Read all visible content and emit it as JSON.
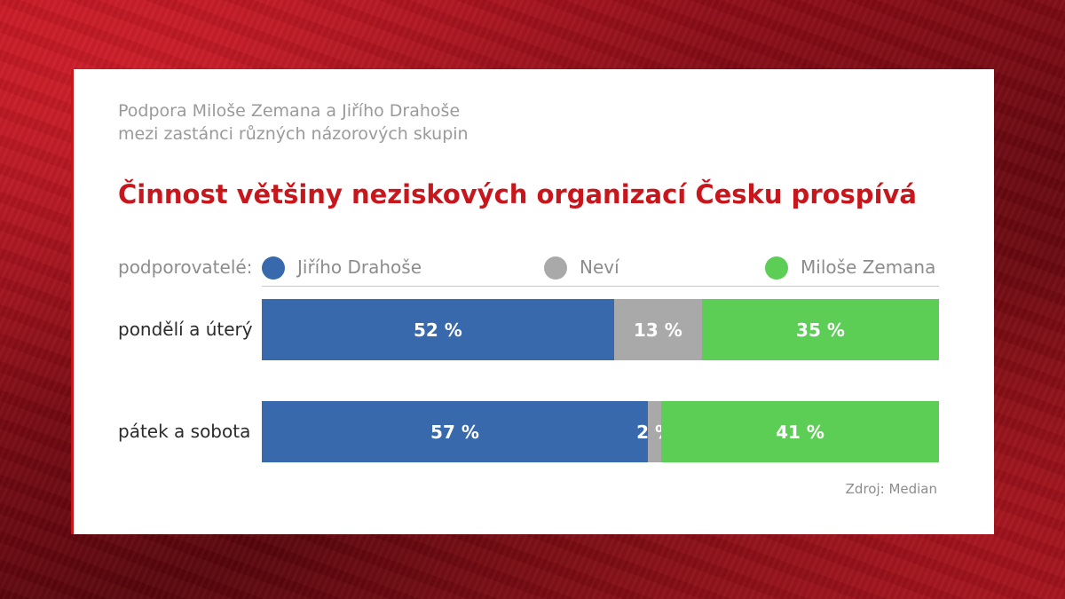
{
  "subtitle": [
    "Podpora Miloše Zemana a Jiřího Drahoše",
    "mezi zastánci různých názorových skupin"
  ],
  "title": "Činnost většiny neziskových organizací Česku prospívá",
  "legend": {
    "caption": "podporovatelé:",
    "items": [
      {
        "label": "Jiřího Drahoše",
        "color": "#3869ad"
      },
      {
        "label": "Neví",
        "color": "#a9a9a9"
      },
      {
        "label": "Miloše Zemana",
        "color": "#5dce55"
      }
    ]
  },
  "chart_data": {
    "type": "bar",
    "orientation": "horizontal",
    "stacked": true,
    "normalized_percent": true,
    "categories": [
      "pondělí a úterý",
      "pátek a sobota"
    ],
    "series": [
      {
        "name": "Jiřího Drahoše",
        "color": "#3869ad",
        "values": [
          52,
          57
        ],
        "labels": [
          "52 %",
          "57 %"
        ]
      },
      {
        "name": "Neví",
        "color": "#a9a9a9",
        "values": [
          13,
          2
        ],
        "labels": [
          "13 %",
          "2 %"
        ]
      },
      {
        "name": "Miloše Zemana",
        "color": "#5dce55",
        "values": [
          35,
          41
        ],
        "labels": [
          "35 %",
          "41 %"
        ]
      }
    ],
    "xlim": [
      0,
      100
    ],
    "legend_position": "top"
  },
  "source": "Zdroj: Median"
}
